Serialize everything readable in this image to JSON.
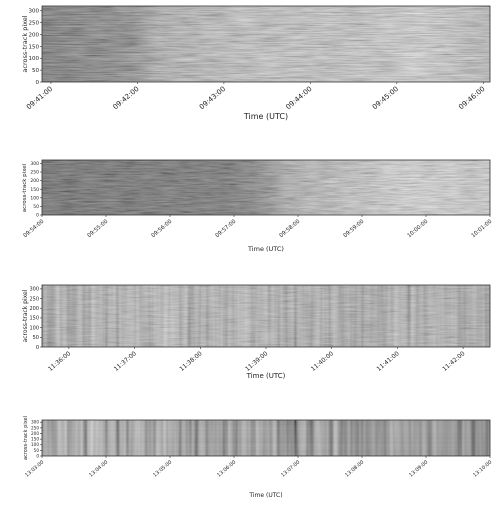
{
  "chart_data": [
    {
      "type": "heatmap",
      "colormap": "grayscale",
      "xlabel": "Time (UTC)",
      "ylabel": "across-track pixel",
      "x_ticks": [
        "09:41:00",
        "09:42:00",
        "09:43:00",
        "09:44:00",
        "09:45:00",
        "09:46:00"
      ],
      "y_ticks": [
        "0",
        "50",
        "100",
        "150",
        "200",
        "250",
        "300"
      ],
      "ylim": [
        0,
        320
      ],
      "grid": false,
      "legend": "none"
    },
    {
      "type": "heatmap",
      "colormap": "grayscale",
      "xlabel": "Time (UTC)",
      "ylabel": "across-track pixel",
      "x_ticks": [
        "09:54:00",
        "09:55:00",
        "09:56:00",
        "09:57:00",
        "09:58:00",
        "09:59:00",
        "10:00:00",
        "10:01:00"
      ],
      "y_ticks": [
        "0",
        "50",
        "100",
        "150",
        "200",
        "250",
        "300"
      ],
      "ylim": [
        0,
        320
      ],
      "grid": false,
      "legend": "none"
    },
    {
      "type": "heatmap",
      "colormap": "grayscale",
      "xlabel": "Time (UTC)",
      "ylabel": "across-track pixel",
      "x_ticks": [
        "11:36:00",
        "11:37:00",
        "11:38:00",
        "11:39:00",
        "11:40:00",
        "11:41:00",
        "11:42:00"
      ],
      "y_ticks": [
        "0",
        "50",
        "100",
        "150",
        "200",
        "250",
        "300"
      ],
      "ylim": [
        0,
        320
      ],
      "grid": false,
      "legend": "none"
    },
    {
      "type": "heatmap",
      "colormap": "grayscale",
      "xlabel": "Time (UTC)",
      "ylabel": "across-track pixel",
      "x_ticks": [
        "13:03:00",
        "13:04:00",
        "13:05:00",
        "13:06:00",
        "13:07:00",
        "13:08:00",
        "13:09:00",
        "13:10:00"
      ],
      "y_ticks": [
        "0",
        "50",
        "100",
        "150",
        "200",
        "250",
        "300"
      ],
      "ylim": [
        0,
        320
      ],
      "grid": false,
      "legend": "none"
    }
  ]
}
